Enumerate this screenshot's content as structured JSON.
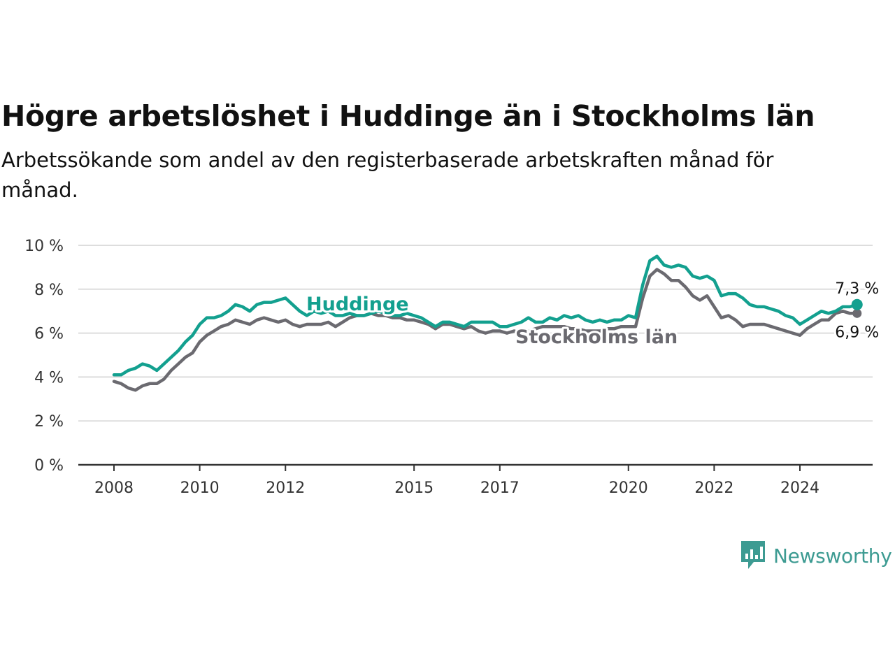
{
  "title": "Högre arbetslöshet i Huddinge än i Stockholms län",
  "subtitle": "Arbetssökande som andel av den registerbaserade arbetskraften månad för månad.",
  "brand": {
    "name": "Newsworthy",
    "color": "#3d9b92",
    "icon": "newsworthy-logo-icon"
  },
  "colors": {
    "Huddinge": "#13a08f",
    "Stockholms län": "#6b6a70",
    "grid": "#dddddd",
    "axis": "#333333"
  },
  "chart_data": {
    "type": "line",
    "title": "Högre arbetslöshet i Huddinge än i Stockholms län",
    "xlabel": "",
    "ylabel": "",
    "ylim": [
      0,
      10
    ],
    "yticks": [
      0,
      2,
      4,
      6,
      8,
      10
    ],
    "ytick_labels": [
      "0 %",
      "2 %",
      "4 %",
      "6 %",
      "8 %",
      "10 %"
    ],
    "xlim": [
      "2008-01",
      "2025-06"
    ],
    "xticks": [
      "2008",
      "2010",
      "2012",
      "2015",
      "2017",
      "2020",
      "2022",
      "2024"
    ],
    "grid": true,
    "legend": "inline",
    "series": [
      {
        "name": "Huddinge",
        "end_label": "7,3 %",
        "points": [
          [
            "2008-01",
            4.1
          ],
          [
            "2008-03",
            4.1
          ],
          [
            "2008-05",
            4.3
          ],
          [
            "2008-07",
            4.4
          ],
          [
            "2008-09",
            4.6
          ],
          [
            "2008-11",
            4.5
          ],
          [
            "2009-01",
            4.3
          ],
          [
            "2009-03",
            4.6
          ],
          [
            "2009-05",
            4.9
          ],
          [
            "2009-07",
            5.2
          ],
          [
            "2009-09",
            5.6
          ],
          [
            "2009-11",
            5.9
          ],
          [
            "2010-01",
            6.4
          ],
          [
            "2010-03",
            6.7
          ],
          [
            "2010-05",
            6.7
          ],
          [
            "2010-07",
            6.8
          ],
          [
            "2010-09",
            7.0
          ],
          [
            "2010-11",
            7.3
          ],
          [
            "2011-01",
            7.2
          ],
          [
            "2011-03",
            7.0
          ],
          [
            "2011-05",
            7.3
          ],
          [
            "2011-07",
            7.4
          ],
          [
            "2011-09",
            7.4
          ],
          [
            "2011-11",
            7.5
          ],
          [
            "2012-01",
            7.6
          ],
          [
            "2012-03",
            7.3
          ],
          [
            "2012-05",
            7.0
          ],
          [
            "2012-07",
            6.8
          ],
          [
            "2012-09",
            7.0
          ],
          [
            "2012-11",
            6.9
          ],
          [
            "2013-01",
            7.0
          ],
          [
            "2013-03",
            6.8
          ],
          [
            "2013-05",
            6.8
          ],
          [
            "2013-07",
            6.9
          ],
          [
            "2013-09",
            6.8
          ],
          [
            "2013-11",
            6.8
          ],
          [
            "2014-01",
            6.9
          ],
          [
            "2014-03",
            7.0
          ],
          [
            "2014-05",
            6.9
          ],
          [
            "2014-07",
            6.8
          ],
          [
            "2014-09",
            6.8
          ],
          [
            "2014-11",
            6.9
          ],
          [
            "2015-01",
            6.8
          ],
          [
            "2015-03",
            6.7
          ],
          [
            "2015-05",
            6.5
          ],
          [
            "2015-07",
            6.3
          ],
          [
            "2015-09",
            6.5
          ],
          [
            "2015-11",
            6.5
          ],
          [
            "2016-01",
            6.4
          ],
          [
            "2016-03",
            6.3
          ],
          [
            "2016-05",
            6.5
          ],
          [
            "2016-07",
            6.5
          ],
          [
            "2016-09",
            6.5
          ],
          [
            "2016-11",
            6.5
          ],
          [
            "2017-01",
            6.3
          ],
          [
            "2017-03",
            6.3
          ],
          [
            "2017-05",
            6.4
          ],
          [
            "2017-07",
            6.5
          ],
          [
            "2017-09",
            6.7
          ],
          [
            "2017-11",
            6.5
          ],
          [
            "2018-01",
            6.5
          ],
          [
            "2018-03",
            6.7
          ],
          [
            "2018-05",
            6.6
          ],
          [
            "2018-07",
            6.8
          ],
          [
            "2018-09",
            6.7
          ],
          [
            "2018-11",
            6.8
          ],
          [
            "2019-01",
            6.6
          ],
          [
            "2019-03",
            6.5
          ],
          [
            "2019-05",
            6.6
          ],
          [
            "2019-07",
            6.5
          ],
          [
            "2019-09",
            6.6
          ],
          [
            "2019-11",
            6.6
          ],
          [
            "2020-01",
            6.8
          ],
          [
            "2020-03",
            6.7
          ],
          [
            "2020-05",
            8.2
          ],
          [
            "2020-07",
            9.3
          ],
          [
            "2020-09",
            9.5
          ],
          [
            "2020-11",
            9.1
          ],
          [
            "2021-01",
            9.0
          ],
          [
            "2021-03",
            9.1
          ],
          [
            "2021-05",
            9.0
          ],
          [
            "2021-07",
            8.6
          ],
          [
            "2021-09",
            8.5
          ],
          [
            "2021-11",
            8.6
          ],
          [
            "2022-01",
            8.4
          ],
          [
            "2022-03",
            7.7
          ],
          [
            "2022-05",
            7.8
          ],
          [
            "2022-07",
            7.8
          ],
          [
            "2022-09",
            7.6
          ],
          [
            "2022-11",
            7.3
          ],
          [
            "2023-01",
            7.2
          ],
          [
            "2023-03",
            7.2
          ],
          [
            "2023-05",
            7.1
          ],
          [
            "2023-07",
            7.0
          ],
          [
            "2023-09",
            6.8
          ],
          [
            "2023-11",
            6.7
          ],
          [
            "2024-01",
            6.4
          ],
          [
            "2024-03",
            6.6
          ],
          [
            "2024-05",
            6.8
          ],
          [
            "2024-07",
            7.0
          ],
          [
            "2024-09",
            6.9
          ],
          [
            "2024-11",
            7.0
          ],
          [
            "2025-01",
            7.2
          ],
          [
            "2025-03",
            7.2
          ],
          [
            "2025-05",
            7.3
          ]
        ]
      },
      {
        "name": "Stockholms län",
        "end_label": "6,9 %",
        "points": [
          [
            "2008-01",
            3.8
          ],
          [
            "2008-03",
            3.7
          ],
          [
            "2008-05",
            3.5
          ],
          [
            "2008-07",
            3.4
          ],
          [
            "2008-09",
            3.6
          ],
          [
            "2008-11",
            3.7
          ],
          [
            "2009-01",
            3.7
          ],
          [
            "2009-03",
            3.9
          ],
          [
            "2009-05",
            4.3
          ],
          [
            "2009-07",
            4.6
          ],
          [
            "2009-09",
            4.9
          ],
          [
            "2009-11",
            5.1
          ],
          [
            "2010-01",
            5.6
          ],
          [
            "2010-03",
            5.9
          ],
          [
            "2010-05",
            6.1
          ],
          [
            "2010-07",
            6.3
          ],
          [
            "2010-09",
            6.4
          ],
          [
            "2010-11",
            6.6
          ],
          [
            "2011-01",
            6.5
          ],
          [
            "2011-03",
            6.4
          ],
          [
            "2011-05",
            6.6
          ],
          [
            "2011-07",
            6.7
          ],
          [
            "2011-09",
            6.6
          ],
          [
            "2011-11",
            6.5
          ],
          [
            "2012-01",
            6.6
          ],
          [
            "2012-03",
            6.4
          ],
          [
            "2012-05",
            6.3
          ],
          [
            "2012-07",
            6.4
          ],
          [
            "2012-09",
            6.4
          ],
          [
            "2012-11",
            6.4
          ],
          [
            "2013-01",
            6.5
          ],
          [
            "2013-03",
            6.3
          ],
          [
            "2013-05",
            6.5
          ],
          [
            "2013-07",
            6.7
          ],
          [
            "2013-09",
            6.8
          ],
          [
            "2013-11",
            6.8
          ],
          [
            "2014-01",
            6.9
          ],
          [
            "2014-03",
            6.8
          ],
          [
            "2014-05",
            6.8
          ],
          [
            "2014-07",
            6.7
          ],
          [
            "2014-09",
            6.7
          ],
          [
            "2014-11",
            6.6
          ],
          [
            "2015-01",
            6.6
          ],
          [
            "2015-03",
            6.5
          ],
          [
            "2015-05",
            6.4
          ],
          [
            "2015-07",
            6.2
          ],
          [
            "2015-09",
            6.4
          ],
          [
            "2015-11",
            6.4
          ],
          [
            "2016-01",
            6.3
          ],
          [
            "2016-03",
            6.2
          ],
          [
            "2016-05",
            6.3
          ],
          [
            "2016-07",
            6.1
          ],
          [
            "2016-09",
            6.0
          ],
          [
            "2016-11",
            6.1
          ],
          [
            "2017-01",
            6.1
          ],
          [
            "2017-03",
            6.0
          ],
          [
            "2017-05",
            6.1
          ],
          [
            "2017-07",
            6.0
          ],
          [
            "2017-09",
            6.1
          ],
          [
            "2017-11",
            6.2
          ],
          [
            "2018-01",
            6.3
          ],
          [
            "2018-03",
            6.3
          ],
          [
            "2018-05",
            6.3
          ],
          [
            "2018-07",
            6.3
          ],
          [
            "2018-09",
            6.2
          ],
          [
            "2018-11",
            6.2
          ],
          [
            "2019-01",
            6.1
          ],
          [
            "2019-03",
            6.1
          ],
          [
            "2019-05",
            6.1
          ],
          [
            "2019-07",
            6.2
          ],
          [
            "2019-09",
            6.2
          ],
          [
            "2019-11",
            6.3
          ],
          [
            "2020-01",
            6.3
          ],
          [
            "2020-03",
            6.3
          ],
          [
            "2020-05",
            7.6
          ],
          [
            "2020-07",
            8.6
          ],
          [
            "2020-09",
            8.9
          ],
          [
            "2020-11",
            8.7
          ],
          [
            "2021-01",
            8.4
          ],
          [
            "2021-03",
            8.4
          ],
          [
            "2021-05",
            8.1
          ],
          [
            "2021-07",
            7.7
          ],
          [
            "2021-09",
            7.5
          ],
          [
            "2021-11",
            7.7
          ],
          [
            "2022-01",
            7.2
          ],
          [
            "2022-03",
            6.7
          ],
          [
            "2022-05",
            6.8
          ],
          [
            "2022-07",
            6.6
          ],
          [
            "2022-09",
            6.3
          ],
          [
            "2022-11",
            6.4
          ],
          [
            "2023-01",
            6.4
          ],
          [
            "2023-03",
            6.4
          ],
          [
            "2023-05",
            6.3
          ],
          [
            "2023-07",
            6.2
          ],
          [
            "2023-09",
            6.1
          ],
          [
            "2023-11",
            6.0
          ],
          [
            "2024-01",
            5.9
          ],
          [
            "2024-03",
            6.2
          ],
          [
            "2024-05",
            6.4
          ],
          [
            "2024-07",
            6.6
          ],
          [
            "2024-09",
            6.6
          ],
          [
            "2024-11",
            6.9
          ],
          [
            "2025-01",
            7.0
          ],
          [
            "2025-03",
            6.9
          ],
          [
            "2025-05",
            6.9
          ]
        ]
      }
    ]
  }
}
